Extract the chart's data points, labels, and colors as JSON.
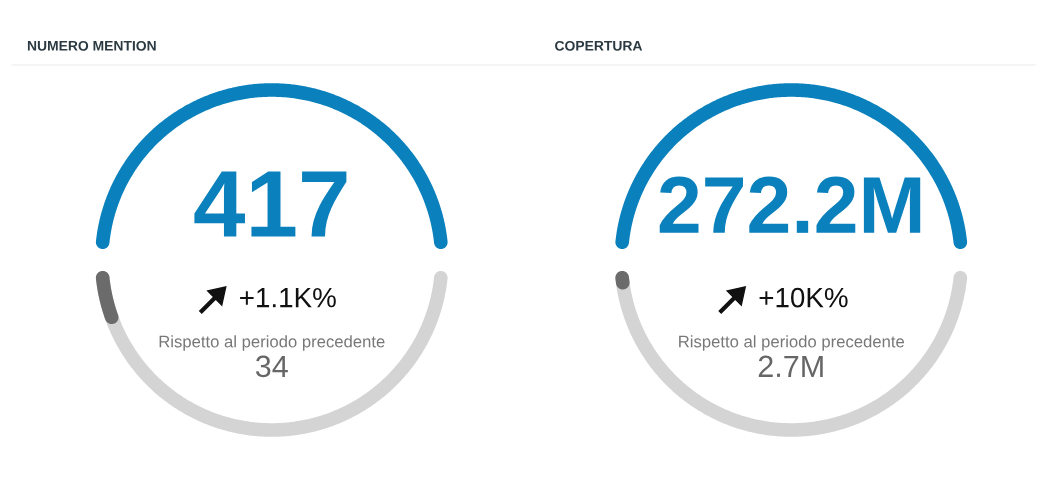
{
  "chart_data": [
    {
      "type": "other",
      "title": "NUMERO MENTION",
      "categories": [
        null,
        null
      ],
      "values": [
        417,
        34
      ],
      "value_labels": [
        "417",
        "34"
      ],
      "colors": [
        "#0a80bd",
        "#6b6b6b"
      ],
      "annotations": [
        "+1.1K%",
        "Rispetto al periodo precedente"
      ]
    },
    {
      "type": "other",
      "title": "COPERTURA",
      "categories": [
        null,
        null
      ],
      "values": [
        272200000,
        2700000
      ],
      "value_labels": [
        "272.2M",
        "2.7M"
      ],
      "colors": [
        "#0a80bd",
        "#6b6b6b"
      ],
      "annotations": [
        "+10K%",
        "Rispetto al periodo precedente"
      ]
    }
  ]
}
